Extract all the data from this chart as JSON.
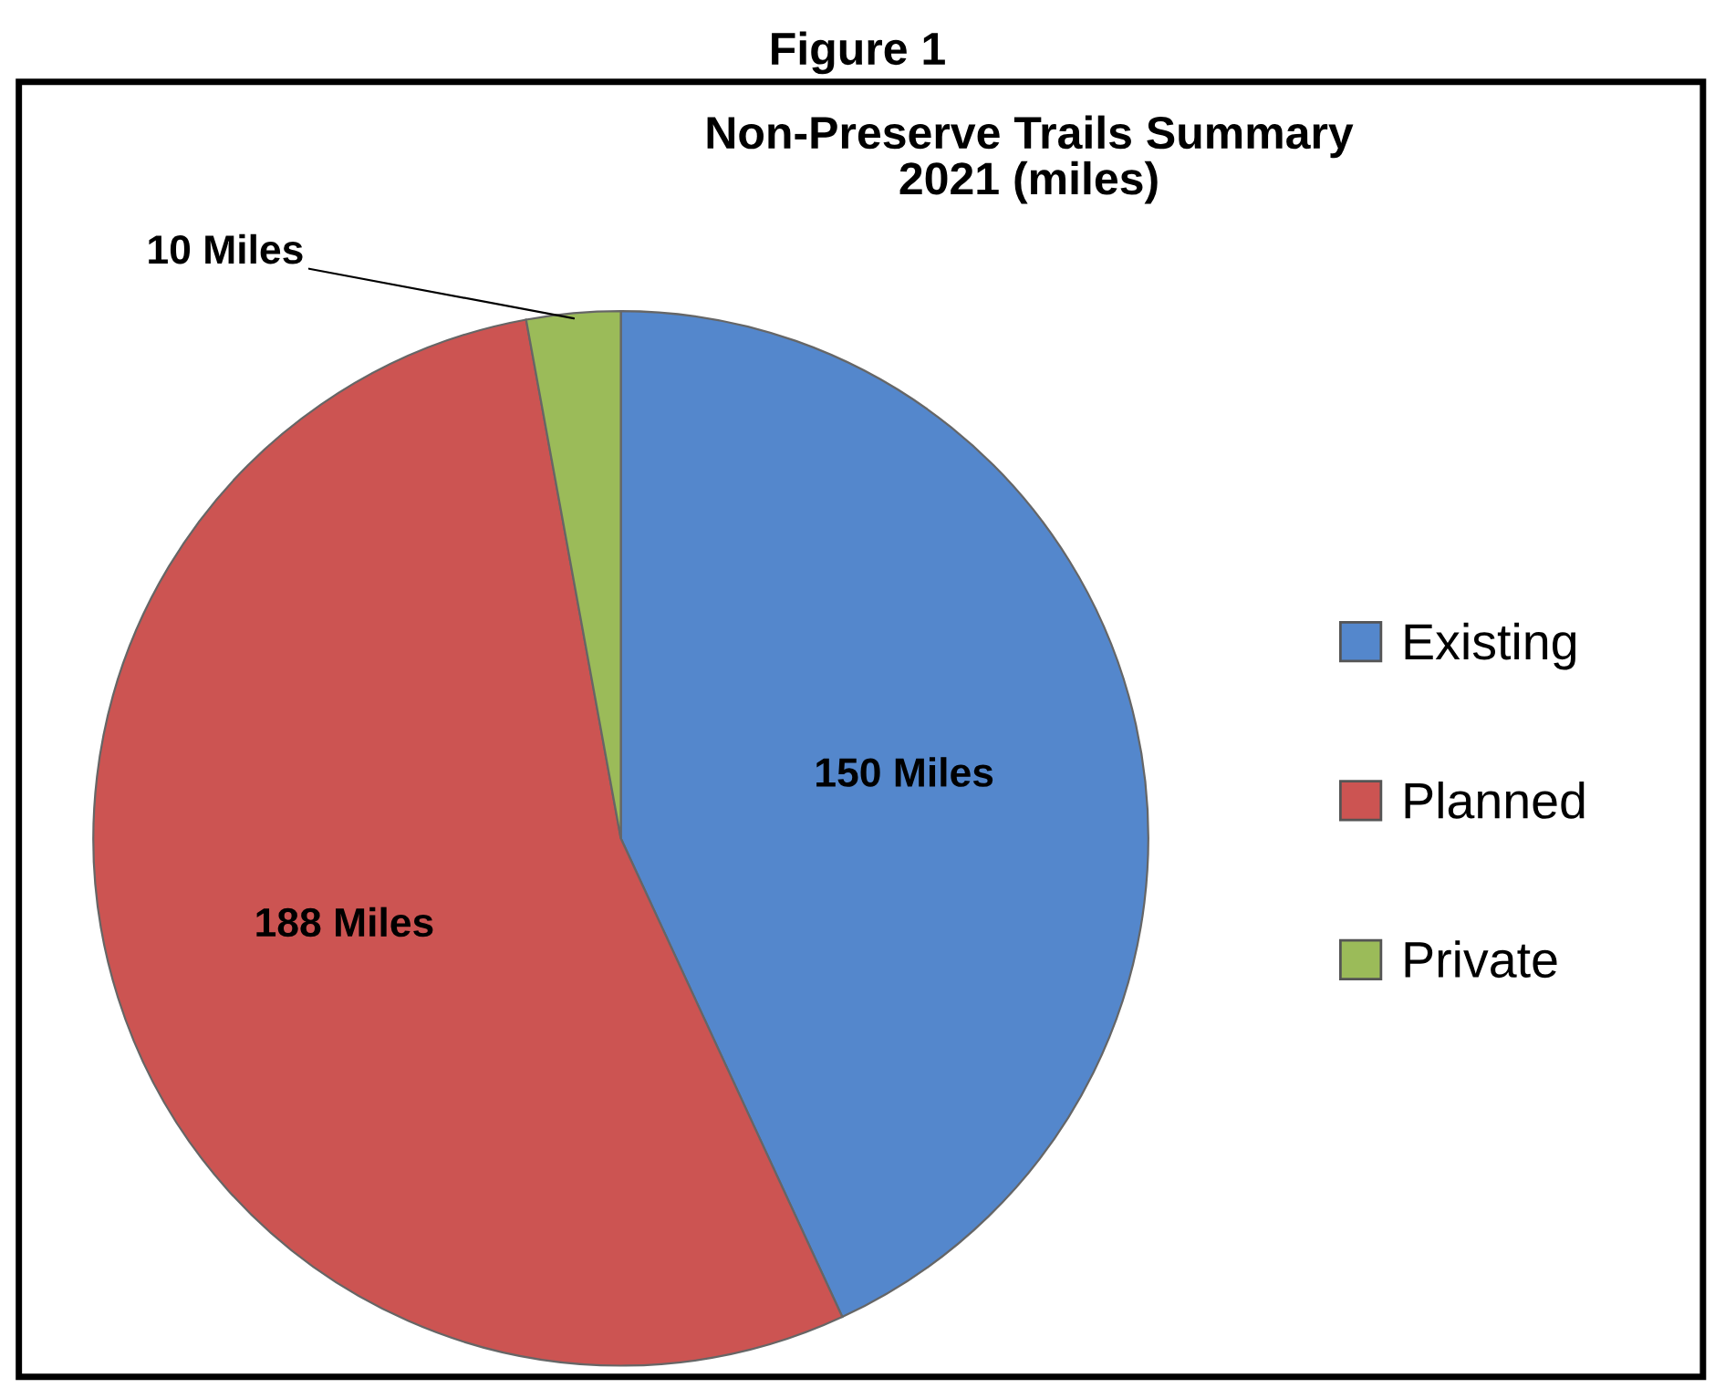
{
  "chart_data": {
    "type": "pie",
    "title": "Figure 1",
    "subtitle": "Non-Preserve Trails Summary\n2021 (miles)",
    "categories": [
      "Existing",
      "Planned",
      "Private"
    ],
    "values": [
      150,
      188,
      10
    ],
    "colors": [
      "#5487cc",
      "#cc5452",
      "#9bbb59"
    ],
    "value_labels": [
      "150 Miles",
      "188 Miles",
      "10 Miles"
    ],
    "legend": "right"
  }
}
